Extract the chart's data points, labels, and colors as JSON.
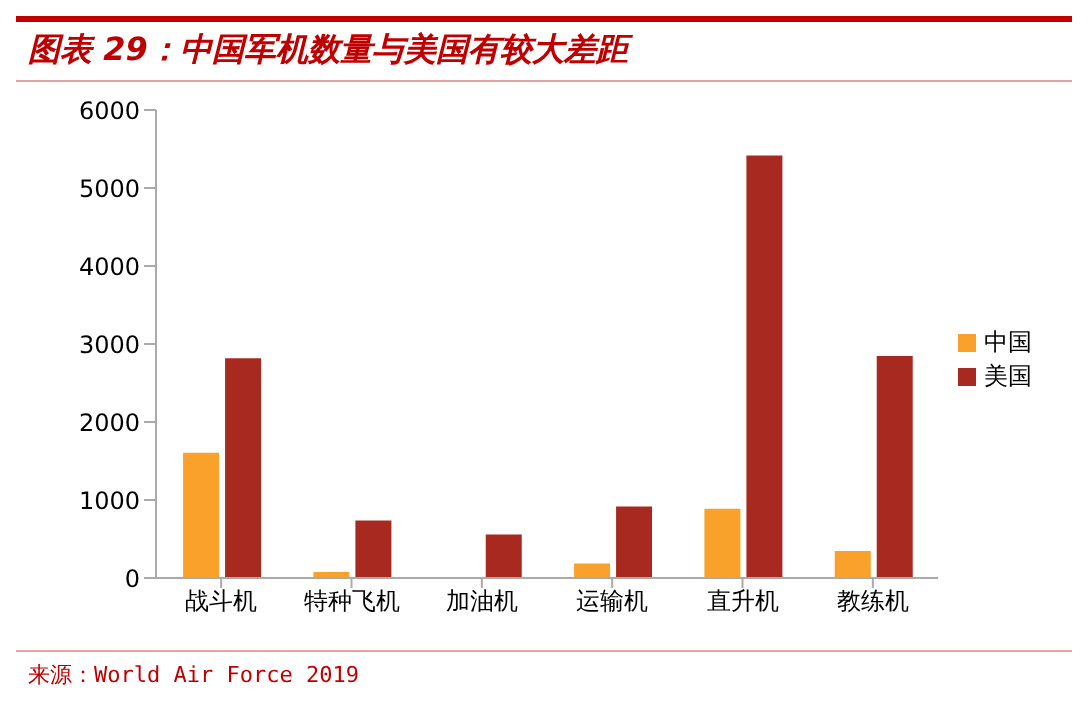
{
  "chart_data": {
    "type": "bar",
    "title": "图表 29：中国军机数量与美国有较大差距",
    "categories": [
      "战斗机",
      "特种飞机",
      "加油机",
      "运输机",
      "直升机",
      "教练机"
    ],
    "series": [
      {
        "name": "中国",
        "color": "#f9a12a",
        "values": [
          1620,
          90,
          0,
          200,
          900,
          360
        ]
      },
      {
        "name": "美国",
        "color": "#a8291f",
        "values": [
          2830,
          750,
          570,
          930,
          5430,
          2860
        ]
      }
    ],
    "ylim": [
      0,
      6000
    ],
    "yticks": [
      0,
      1000,
      2000,
      3000,
      4000,
      5000,
      6000
    ],
    "grid": false,
    "legend": "right",
    "annotations": [
      "来源：World Air Force 2019"
    ]
  }
}
